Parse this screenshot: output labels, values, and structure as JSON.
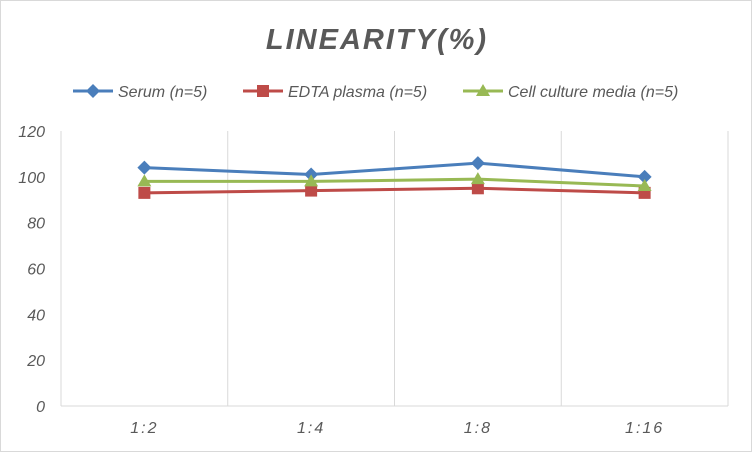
{
  "chart_data": {
    "type": "line",
    "title": "LINEARITY(%)",
    "xlabel": "",
    "ylabel": "",
    "categories": [
      "1:2",
      "1:4",
      "1:8",
      "1:16"
    ],
    "ylim": [
      0,
      120
    ],
    "yticks": [
      0,
      20,
      40,
      60,
      80,
      100,
      120
    ],
    "legend_position": "top",
    "grid": "vertical",
    "series": [
      {
        "name": "Serum (n=5)",
        "color": "#4a7ebb",
        "marker": "diamond",
        "values": [
          104,
          101,
          106,
          100
        ]
      },
      {
        "name": "EDTA plasma (n=5)",
        "color": "#be4b48",
        "marker": "square",
        "values": [
          93,
          94,
          95,
          93
        ]
      },
      {
        "name": "Cell culture media (n=5)",
        "color": "#98b954",
        "marker": "triangle",
        "values": [
          98,
          98,
          99,
          96
        ]
      }
    ]
  }
}
